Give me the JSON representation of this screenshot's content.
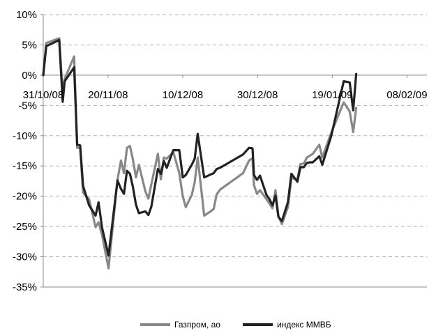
{
  "chart_data": {
    "type": "line",
    "title": "",
    "xlabel": "",
    "ylabel": "",
    "x_unit": "index (trading days from 31/10/08)",
    "x_tick_labels": [
      {
        "x": 0,
        "label": "31/10/08"
      },
      {
        "x": 13,
        "label": "20/11/08"
      },
      {
        "x": 28,
        "label": "10/12/08"
      },
      {
        "x": 43,
        "label": "30/12/08"
      },
      {
        "x": 58,
        "label": "19/01/09"
      },
      {
        "x": 73,
        "label": "08/02/09"
      }
    ],
    "x_range": [
      0,
      77
    ],
    "y_unit": "percent",
    "ylim": [
      -35,
      10
    ],
    "y_ticks": [
      10,
      5,
      0,
      -5,
      -10,
      -15,
      -20,
      -25,
      -30,
      -35
    ],
    "y_tick_labels": [
      "10%",
      "5%",
      "0%",
      "-5%",
      "-10%",
      "-15%",
      "-20%",
      "-25%",
      "-30%",
      "-35%"
    ],
    "grid": {
      "horizontal": "dashed",
      "vertical": false
    },
    "legend_position": "bottom",
    "series": [
      {
        "name": "Газпром, ао",
        "color": "#888888",
        "points": [
          [
            0,
            0.0
          ],
          [
            0.6,
            5.3
          ],
          [
            3.2,
            6.1
          ],
          [
            3.9,
            -3.1
          ],
          [
            4.3,
            -0.6
          ],
          [
            6.2,
            3.1
          ],
          [
            6.8,
            -12.0
          ],
          [
            7.4,
            -12.0
          ],
          [
            8.0,
            -19.4
          ],
          [
            9.2,
            -20.5
          ],
          [
            10.5,
            -25.1
          ],
          [
            11.1,
            -24.3
          ],
          [
            11.8,
            -26.4
          ],
          [
            13.1,
            -31.9
          ],
          [
            14.9,
            -17.3
          ],
          [
            15.6,
            -14.1
          ],
          [
            16.2,
            -16.2
          ],
          [
            16.8,
            -12.0
          ],
          [
            17.4,
            -11.7
          ],
          [
            18.0,
            -14.0
          ],
          [
            18.6,
            -16.9
          ],
          [
            19.2,
            -14.8
          ],
          [
            20.5,
            -19.2
          ],
          [
            21.1,
            -20.4
          ],
          [
            21.7,
            -18.0
          ],
          [
            23.0,
            -13.0
          ],
          [
            23.6,
            -17.2
          ],
          [
            24.2,
            -13.6
          ],
          [
            24.8,
            -13.8
          ],
          [
            26.1,
            -12.7
          ],
          [
            27.3,
            -16.2
          ],
          [
            28.0,
            -20.0
          ],
          [
            28.6,
            -21.8
          ],
          [
            29.8,
            -19.8
          ],
          [
            30.4,
            -17.7
          ],
          [
            31.0,
            -13.6
          ],
          [
            32.3,
            -23.2
          ],
          [
            33.6,
            -22.5
          ],
          [
            34.2,
            -22.1
          ],
          [
            34.8,
            -19.7
          ],
          [
            35.5,
            -18.9
          ],
          [
            40.1,
            -16.2
          ],
          [
            41.3,
            -14.1
          ],
          [
            42.0,
            -13.7
          ],
          [
            42.3,
            -18.2
          ],
          [
            42.9,
            -19.6
          ],
          [
            43.5,
            -19.0
          ],
          [
            44.8,
            -20.5
          ],
          [
            45.4,
            -21.2
          ],
          [
            46.0,
            -22.0
          ],
          [
            46.6,
            -19.0
          ],
          [
            47.2,
            -23.3
          ],
          [
            47.9,
            -24.6
          ],
          [
            49.1,
            -21.8
          ],
          [
            49.8,
            -17.0
          ],
          [
            51.0,
            -17.2
          ],
          [
            51.6,
            -14.7
          ],
          [
            52.3,
            -14.6
          ],
          [
            52.9,
            -13.6
          ],
          [
            53.5,
            -13.3
          ],
          [
            54.1,
            -13.0
          ],
          [
            55.4,
            -11.5
          ],
          [
            56.0,
            -13.6
          ],
          [
            57.8,
            -9.5
          ],
          [
            60.3,
            -4.5
          ],
          [
            61.5,
            -6.0
          ],
          [
            62.2,
            -9.4
          ],
          [
            62.8,
            -5.4
          ]
        ]
      },
      {
        "name": "индекс ММВБ",
        "color": "#222222",
        "points": [
          [
            0,
            0.0
          ],
          [
            0.6,
            4.8
          ],
          [
            3.2,
            5.8
          ],
          [
            3.9,
            -4.4
          ],
          [
            4.3,
            -1.0
          ],
          [
            6.2,
            1.3
          ],
          [
            6.8,
            -11.5
          ],
          [
            7.4,
            -11.6
          ],
          [
            8.0,
            -18.3
          ],
          [
            9.2,
            -21.5
          ],
          [
            10.5,
            -23.2
          ],
          [
            11.1,
            -21.0
          ],
          [
            11.8,
            -25.2
          ],
          [
            13.1,
            -29.8
          ],
          [
            14.9,
            -17.4
          ],
          [
            15.6,
            -18.8
          ],
          [
            16.2,
            -19.6
          ],
          [
            16.8,
            -15.8
          ],
          [
            17.4,
            -16.3
          ],
          [
            18.0,
            -18.5
          ],
          [
            18.6,
            -21.4
          ],
          [
            19.2,
            -22.8
          ],
          [
            20.5,
            -22.5
          ],
          [
            21.1,
            -23.1
          ],
          [
            21.7,
            -21.7
          ],
          [
            23.0,
            -15.5
          ],
          [
            23.6,
            -16.3
          ],
          [
            24.2,
            -14.2
          ],
          [
            24.8,
            -15.3
          ],
          [
            26.1,
            -12.4
          ],
          [
            27.3,
            -12.4
          ],
          [
            28.0,
            -16.9
          ],
          [
            28.6,
            -16.5
          ],
          [
            29.8,
            -14.8
          ],
          [
            30.4,
            -13.8
          ],
          [
            31.0,
            -9.7
          ],
          [
            32.3,
            -16.9
          ],
          [
            33.6,
            -16.4
          ],
          [
            34.2,
            -16.2
          ],
          [
            34.8,
            -15.5
          ],
          [
            35.5,
            -15.3
          ],
          [
            40.1,
            -13.1
          ],
          [
            41.3,
            -12.0
          ],
          [
            42.0,
            -12.1
          ],
          [
            42.3,
            -16.5
          ],
          [
            42.9,
            -17.3
          ],
          [
            43.5,
            -16.6
          ],
          [
            44.8,
            -19.8
          ],
          [
            45.4,
            -20.5
          ],
          [
            46.0,
            -21.5
          ],
          [
            46.6,
            -19.9
          ],
          [
            47.2,
            -23.4
          ],
          [
            47.9,
            -24.1
          ],
          [
            49.1,
            -21.0
          ],
          [
            49.8,
            -16.3
          ],
          [
            51.0,
            -17.6
          ],
          [
            51.6,
            -15.2
          ],
          [
            52.3,
            -15.2
          ],
          [
            52.9,
            -14.5
          ],
          [
            53.5,
            -14.4
          ],
          [
            54.1,
            -14.4
          ],
          [
            55.4,
            -13.4
          ],
          [
            56.0,
            -14.8
          ],
          [
            57.8,
            -10.0
          ],
          [
            60.3,
            -1.0
          ],
          [
            61.5,
            -1.2
          ],
          [
            62.2,
            -5.8
          ],
          [
            62.8,
            0.2
          ]
        ]
      }
    ]
  }
}
